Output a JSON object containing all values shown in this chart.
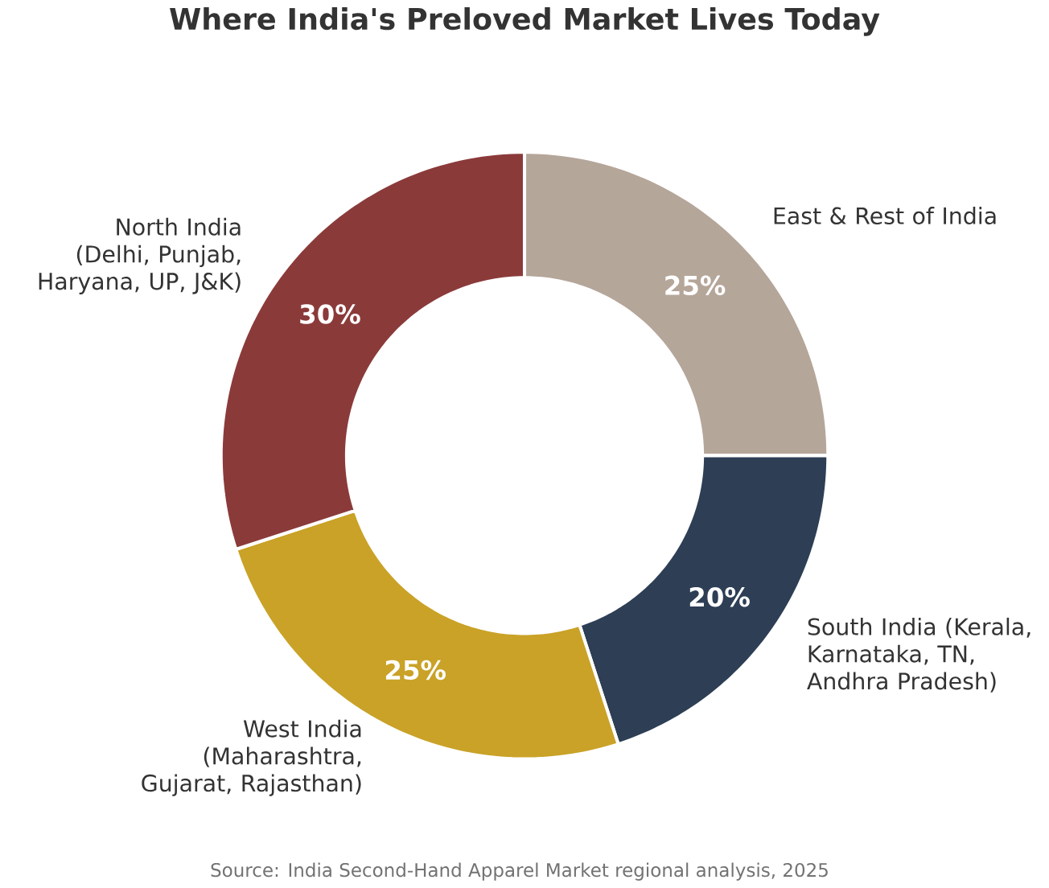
{
  "chart_data": {
    "type": "donut",
    "title": "Where India's Preloved Market Lives Today",
    "categories": [
      "East & Rest of India",
      "South India (Kerala, Karnataka, TN, Andhra Pradesh)",
      "West India (Maharashtra, Gujarat, Rajasthan)",
      "North India (Delhi, Punjab, Haryana, UP, J&K)"
    ],
    "values": [
      25,
      20,
      25,
      30
    ],
    "colors": [
      "#b5a69a",
      "#2d3e55",
      "#c9a227",
      "#8b3a3a"
    ],
    "value_labels": [
      "25%",
      "20%",
      "25%",
      "30%"
    ],
    "annotations": [
      "Source: India Second-Hand Apparel Market regional analysis, 2025"
    ]
  }
}
